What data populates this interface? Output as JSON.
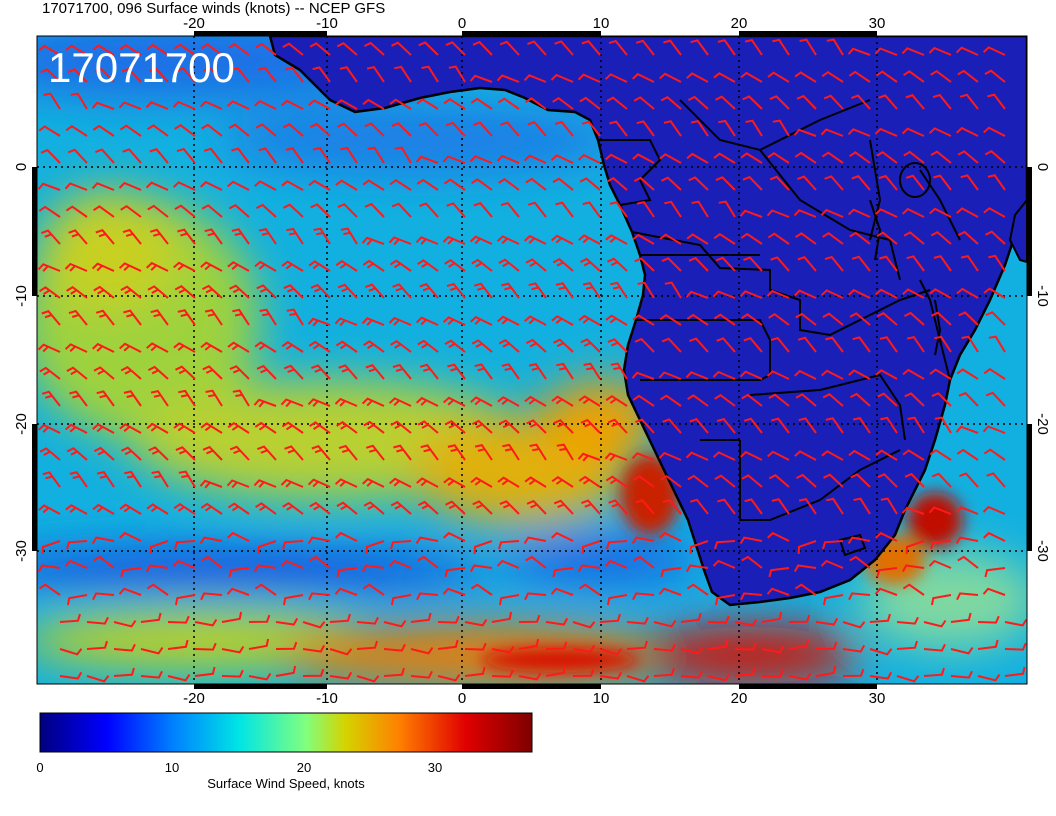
{
  "header": {
    "title": "17071700, 096 Surface winds (knots) -- NCEP GFS"
  },
  "map": {
    "overlay_label": "17071700",
    "lon_ticks": [
      "-20",
      "-10",
      "0",
      "10",
      "20",
      "30"
    ],
    "lat_ticks": [
      "0",
      "-10",
      "-20",
      "-30"
    ],
    "barb_color": "#ff1a1a",
    "land_tint": "#1a1fb8",
    "gridline_style": "dotted"
  },
  "colorbar": {
    "title": "Surface Wind Speed, knots",
    "ticks": [
      "0",
      "10",
      "20",
      "30"
    ],
    "scale": [
      {
        "value": 0,
        "color": "#00007f"
      },
      {
        "value": 5,
        "color": "#0000ff"
      },
      {
        "value": 10,
        "color": "#0080ff"
      },
      {
        "value": 15,
        "color": "#00e5e5"
      },
      {
        "value": 20,
        "color": "#80ff80"
      },
      {
        "value": 23,
        "color": "#d4d400"
      },
      {
        "value": 27,
        "color": "#ff8000"
      },
      {
        "value": 32,
        "color": "#e00000"
      },
      {
        "value": 37,
        "color": "#7f0000"
      }
    ]
  }
}
